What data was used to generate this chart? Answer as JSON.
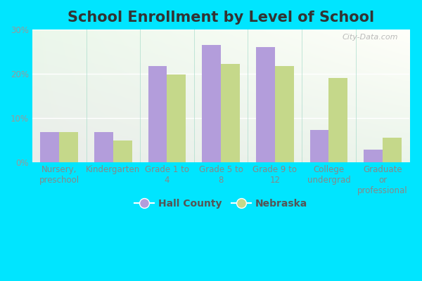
{
  "title": "School Enrollment by Level of School",
  "categories": [
    "Nursery,\npreschool",
    "Kindergarten",
    "Grade 1 to\n4",
    "Grade 5 to\n8",
    "Grade 9 to\n12",
    "College\nundergrad",
    "Graduate\nor\nprofessional"
  ],
  "hall_county": [
    6.8,
    6.8,
    21.8,
    26.5,
    26.0,
    7.2,
    2.8
  ],
  "nebraska": [
    6.8,
    4.8,
    19.8,
    22.2,
    21.8,
    19.0,
    5.5
  ],
  "hall_color": "#b39ddb",
  "nebraska_color": "#c5d88a",
  "ylim": [
    0,
    30
  ],
  "yticks": [
    0,
    10,
    20,
    30
  ],
  "ytick_labels": [
    "0%",
    "10%",
    "20%",
    "30%"
  ],
  "outer_bg": "#00e5ff",
  "legend_hall": "Hall County",
  "legend_nebraska": "Nebraska",
  "title_fontsize": 15,
  "tick_fontsize": 8.5,
  "legend_fontsize": 10,
  "watermark": "City-Data.com"
}
